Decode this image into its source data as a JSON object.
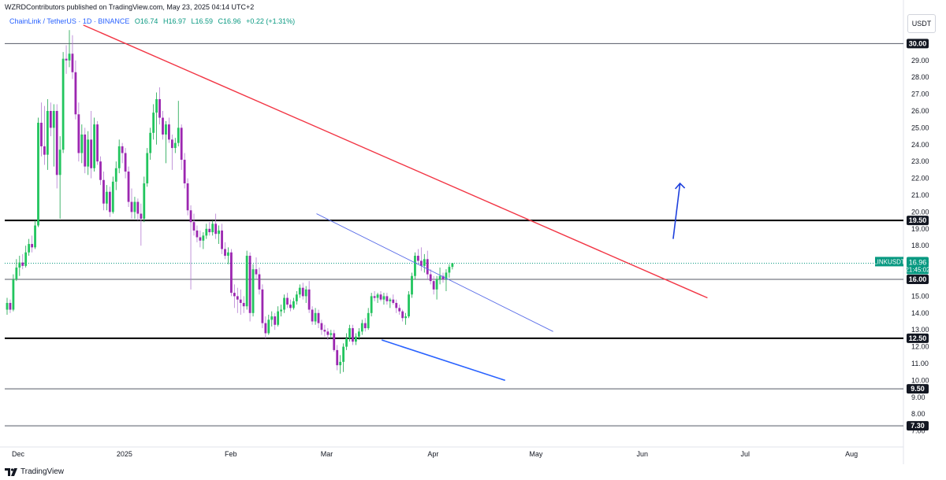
{
  "header": {
    "published": "WZRDContributors published on TradingView.com, May 23, 2025 04:14 UTC+2"
  },
  "symbol_info": {
    "name": "ChainLink / TetherUS · 1D · BINANCE",
    "open": "O16.74",
    "high": "H16.97",
    "low": "L16.59",
    "close": "C16.96",
    "change": "+0.22 (+1.31%)"
  },
  "currency": "USDT",
  "footer": {
    "brand": "TradingView"
  },
  "colors": {
    "up": "#089981",
    "up_bright": "#22c55e",
    "down": "#9c27b0",
    "trendline_red": "#f23645",
    "channel_blue": "#2962ff",
    "arrow_blue": "#1e40dd"
  },
  "chart_data": {
    "type": "candlestick",
    "y_axis": {
      "min": 6.7,
      "max": 31.3,
      "ticks": [
        7.0,
        8.0,
        9.0,
        10.0,
        11.0,
        12.0,
        13.0,
        14.0,
        15.0,
        16.0,
        17.0,
        18.0,
        19.0,
        20.0,
        21.0,
        22.0,
        23.0,
        24.0,
        25.0,
        26.0,
        27.0,
        28.0,
        29.0,
        30.0
      ],
      "tick_labels": [
        "7.00",
        "8.00",
        "9.00",
        "10.00",
        "11.00",
        "12.00",
        "13.00",
        "14.00",
        "15.00",
        "16.00",
        "17.00",
        "18.00",
        "19.00",
        "20.00",
        "21.00",
        "22.00",
        "23.00",
        "24.00",
        "25.00",
        "26.00",
        "27.00",
        "28.00",
        "29.00",
        "30.00"
      ]
    },
    "x_axis": {
      "labels": [
        "Dec",
        "2025",
        "Feb",
        "Mar",
        "Apr",
        "May",
        "Jun",
        "Jul",
        "Aug"
      ],
      "label_days": [
        23,
        54,
        85,
        113,
        144,
        174,
        205,
        235,
        266
      ]
    },
    "current_price": {
      "symbol": "LINKUSDT",
      "price": "16.96",
      "countdown": "21:45:02"
    },
    "horizontal_levels": [
      {
        "price": 30.0,
        "label": "30.00",
        "style": "thin"
      },
      {
        "price": 19.5,
        "label": "19.50",
        "style": "thick"
      },
      {
        "price": 16.0,
        "label": "16.00",
        "style": "thin"
      },
      {
        "price": 12.5,
        "label": "12.50",
        "style": "thick"
      },
      {
        "price": 9.5,
        "label": "9.50",
        "style": "thin"
      },
      {
        "price": 7.3,
        "label": "7.30",
        "style": "thin"
      }
    ],
    "trendlines": [
      {
        "name": "descending resistance",
        "x1": 42,
        "y1": 31.1,
        "x2": 224,
        "y2": 14.9,
        "color": "red"
      },
      {
        "name": "channel upper",
        "x1": 110,
        "y1": 19.9,
        "x2": 179,
        "y2": 12.9,
        "color": "blue-thin"
      },
      {
        "name": "channel lower",
        "x1": 129,
        "y1": 12.4,
        "x2": 165,
        "y2": 10.0,
        "color": "blue"
      }
    ],
    "projection_arrow": {
      "x1": 214,
      "y1": 18.4,
      "x2": 216,
      "y2": 21.7
    },
    "candles": [
      [
        14.2,
        14.9,
        13.9,
        14.6
      ],
      [
        14.6,
        14.8,
        14.0,
        14.2
      ],
      [
        14.2,
        16.3,
        14.1,
        16.0
      ],
      [
        16.0,
        17.2,
        15.9,
        16.7
      ],
      [
        16.7,
        17.4,
        16.2,
        17.0
      ],
      [
        17.0,
        17.5,
        16.6,
        16.8
      ],
      [
        16.8,
        18.0,
        16.7,
        17.6
      ],
      [
        17.6,
        18.4,
        17.4,
        18.1
      ],
      [
        18.1,
        18.6,
        17.6,
        17.9
      ],
      [
        17.9,
        19.5,
        17.8,
        19.2
      ],
      [
        19.2,
        25.6,
        19.1,
        25.3
      ],
      [
        25.3,
        26.5,
        23.3,
        23.9
      ],
      [
        23.9,
        26.3,
        22.8,
        23.4
      ],
      [
        23.4,
        26.7,
        22.5,
        26.0
      ],
      [
        26.0,
        26.5,
        24.5,
        25.0
      ],
      [
        25.0,
        26.4,
        22.7,
        26.0
      ],
      [
        26.0,
        26.4,
        21.4,
        22.2
      ],
      [
        22.2,
        24.5,
        19.6,
        23.7
      ],
      [
        23.7,
        29.5,
        23.5,
        29.1
      ],
      [
        29.1,
        29.9,
        28.2,
        29.0
      ],
      [
        29.0,
        30.8,
        28.6,
        29.4
      ],
      [
        29.4,
        30.5,
        27.9,
        28.3
      ],
      [
        28.3,
        29.0,
        25.5,
        25.8
      ],
      [
        25.8,
        26.5,
        23.0,
        23.5
      ],
      [
        23.5,
        25.2,
        22.9,
        24.6
      ],
      [
        24.6,
        25.0,
        22.3,
        22.7
      ],
      [
        22.7,
        24.8,
        22.2,
        24.3
      ],
      [
        24.3,
        26.0,
        22.0,
        22.6
      ],
      [
        22.6,
        25.6,
        22.4,
        25.2
      ],
      [
        25.2,
        25.4,
        22.8,
        23.0
      ],
      [
        23.0,
        23.3,
        21.6,
        21.9
      ],
      [
        21.9,
        22.4,
        20.1,
        20.5
      ],
      [
        20.5,
        21.6,
        20.1,
        21.2
      ],
      [
        21.2,
        21.5,
        19.7,
        20.0
      ],
      [
        20.0,
        22.1,
        19.9,
        21.8
      ],
      [
        21.8,
        23.0,
        21.3,
        22.6
      ],
      [
        22.6,
        24.3,
        22.3,
        23.9
      ],
      [
        23.9,
        24.1,
        22.9,
        23.5
      ],
      [
        23.5,
        23.8,
        22.0,
        22.4
      ],
      [
        22.4,
        22.7,
        20.3,
        20.6
      ],
      [
        20.6,
        21.4,
        19.6,
        20.0
      ],
      [
        20.0,
        20.9,
        19.6,
        20.6
      ],
      [
        20.6,
        20.8,
        19.5,
        19.9
      ],
      [
        19.9,
        20.5,
        18.0,
        19.6
      ],
      [
        19.6,
        22.1,
        19.4,
        21.7
      ],
      [
        21.7,
        23.8,
        21.5,
        23.5
      ],
      [
        23.5,
        25.0,
        23.1,
        24.7
      ],
      [
        24.7,
        26.4,
        24.3,
        25.9
      ],
      [
        25.9,
        27.1,
        24.0,
        26.7
      ],
      [
        26.7,
        27.4,
        25.2,
        25.6
      ],
      [
        25.6,
        26.0,
        24.3,
        24.6
      ],
      [
        24.6,
        25.4,
        22.9,
        25.2
      ],
      [
        25.2,
        25.6,
        24.1,
        24.3
      ],
      [
        24.3,
        24.6,
        22.5,
        23.8
      ],
      [
        23.8,
        24.4,
        23.5,
        24.1
      ],
      [
        24.1,
        26.6,
        23.9,
        25.0
      ],
      [
        25.0,
        25.2,
        22.5,
        23.1
      ],
      [
        23.1,
        23.5,
        21.4,
        21.7
      ],
      [
        21.7,
        22.0,
        19.8,
        20.1
      ],
      [
        20.1,
        20.4,
        15.4,
        19.4
      ],
      [
        19.4,
        19.9,
        18.6,
        18.9
      ],
      [
        18.9,
        19.2,
        18.2,
        18.5
      ],
      [
        18.5,
        18.9,
        17.9,
        18.3
      ],
      [
        18.3,
        18.8,
        17.8,
        18.6
      ],
      [
        18.6,
        19.3,
        18.4,
        19.0
      ],
      [
        19.0,
        19.4,
        18.6,
        18.8
      ],
      [
        18.8,
        19.5,
        18.6,
        19.3
      ],
      [
        19.3,
        19.9,
        18.4,
        18.7
      ],
      [
        18.7,
        19.2,
        18.1,
        18.9
      ],
      [
        18.9,
        19.3,
        17.5,
        17.8
      ],
      [
        17.8,
        18.2,
        17.2,
        17.4
      ],
      [
        17.4,
        17.9,
        16.9,
        17.6
      ],
      [
        17.6,
        17.8,
        15.0,
        15.2
      ],
      [
        15.2,
        15.7,
        14.3,
        15.0
      ],
      [
        15.0,
        15.5,
        14.0,
        14.8
      ],
      [
        14.8,
        15.4,
        13.9,
        14.6
      ],
      [
        14.6,
        15.0,
        14.0,
        14.4
      ],
      [
        14.4,
        17.7,
        14.2,
        17.4
      ],
      [
        17.4,
        17.6,
        13.5,
        14.0
      ],
      [
        14.0,
        16.9,
        13.8,
        16.6
      ],
      [
        16.6,
        17.3,
        16.0,
        16.3
      ],
      [
        16.3,
        16.7,
        15.1,
        15.4
      ],
      [
        15.4,
        15.7,
        13.1,
        13.4
      ],
      [
        13.4,
        13.8,
        12.5,
        12.8
      ],
      [
        12.8,
        13.9,
        12.7,
        13.6
      ],
      [
        13.6,
        14.1,
        13.2,
        13.8
      ],
      [
        13.8,
        14.0,
        13.0,
        13.3
      ],
      [
        13.3,
        14.4,
        13.2,
        14.1
      ],
      [
        14.1,
        14.5,
        13.8,
        14.2
      ],
      [
        14.2,
        15.1,
        14.0,
        14.9
      ],
      [
        14.9,
        15.2,
        14.3,
        14.5
      ],
      [
        14.5,
        14.8,
        14.1,
        14.3
      ],
      [
        14.3,
        14.9,
        14.2,
        14.7
      ],
      [
        14.7,
        15.3,
        14.5,
        15.1
      ],
      [
        15.1,
        15.7,
        14.9,
        15.5
      ],
      [
        15.5,
        15.8,
        14.8,
        15.0
      ],
      [
        15.0,
        15.6,
        14.6,
        15.4
      ],
      [
        15.4,
        15.9,
        14.0,
        14.2
      ],
      [
        14.2,
        14.4,
        13.3,
        13.5
      ],
      [
        13.5,
        14.3,
        13.3,
        14.0
      ],
      [
        14.0,
        14.2,
        13.1,
        13.4
      ],
      [
        13.4,
        13.6,
        12.7,
        13.0
      ],
      [
        13.0,
        13.3,
        12.6,
        12.9
      ],
      [
        12.9,
        13.1,
        12.4,
        12.7
      ],
      [
        12.7,
        13.0,
        12.5,
        12.8
      ],
      [
        12.8,
        13.0,
        11.7,
        11.8
      ],
      [
        11.8,
        12.1,
        10.6,
        10.9
      ],
      [
        10.9,
        11.5,
        10.4,
        11.1
      ],
      [
        11.1,
        12.2,
        10.5,
        12.0
      ],
      [
        12.0,
        12.8,
        11.8,
        12.5
      ],
      [
        12.5,
        13.3,
        12.3,
        13.1
      ],
      [
        13.1,
        13.3,
        12.1,
        12.3
      ],
      [
        12.3,
        12.8,
        12.1,
        12.6
      ],
      [
        12.6,
        13.1,
        12.4,
        12.9
      ],
      [
        12.9,
        13.6,
        12.7,
        13.4
      ],
      [
        13.4,
        13.7,
        12.9,
        13.1
      ],
      [
        13.1,
        14.3,
        13.0,
        14.0
      ],
      [
        14.0,
        15.2,
        13.8,
        15.0
      ],
      [
        15.0,
        15.3,
        14.7,
        14.9
      ],
      [
        14.9,
        15.2,
        14.6,
        15.1
      ],
      [
        15.1,
        15.3,
        14.7,
        14.8
      ],
      [
        14.8,
        15.2,
        14.5,
        15.0
      ],
      [
        15.0,
        15.2,
        14.5,
        14.7
      ],
      [
        14.7,
        14.9,
        14.3,
        14.8
      ],
      [
        14.8,
        15.1,
        14.5,
        14.6
      ],
      [
        14.6,
        14.8,
        14.0,
        14.3
      ],
      [
        14.3,
        14.5,
        13.9,
        14.1
      ],
      [
        14.1,
        14.2,
        13.5,
        13.7
      ],
      [
        13.7,
        14.0,
        13.3,
        13.8
      ],
      [
        13.8,
        15.3,
        13.7,
        15.1
      ],
      [
        15.1,
        16.4,
        14.9,
        16.2
      ],
      [
        16.2,
        17.6,
        16.0,
        17.4
      ],
      [
        17.4,
        17.8,
        16.9,
        17.1
      ],
      [
        17.1,
        17.9,
        16.5,
        16.8
      ],
      [
        16.8,
        17.5,
        16.4,
        17.2
      ],
      [
        17.2,
        17.7,
        16.0,
        16.3
      ],
      [
        16.3,
        16.6,
        15.7,
        15.9
      ],
      [
        15.9,
        16.2,
        15.1,
        15.4
      ],
      [
        15.4,
        16.2,
        14.8,
        16.0
      ],
      [
        16.0,
        16.7,
        15.7,
        16.2
      ],
      [
        16.2,
        16.4,
        15.8,
        16.0
      ],
      [
        16.0,
        16.6,
        15.3,
        16.4
      ],
      [
        16.4,
        16.9,
        16.1,
        16.74
      ],
      [
        16.74,
        16.97,
        16.59,
        16.96
      ]
    ]
  }
}
